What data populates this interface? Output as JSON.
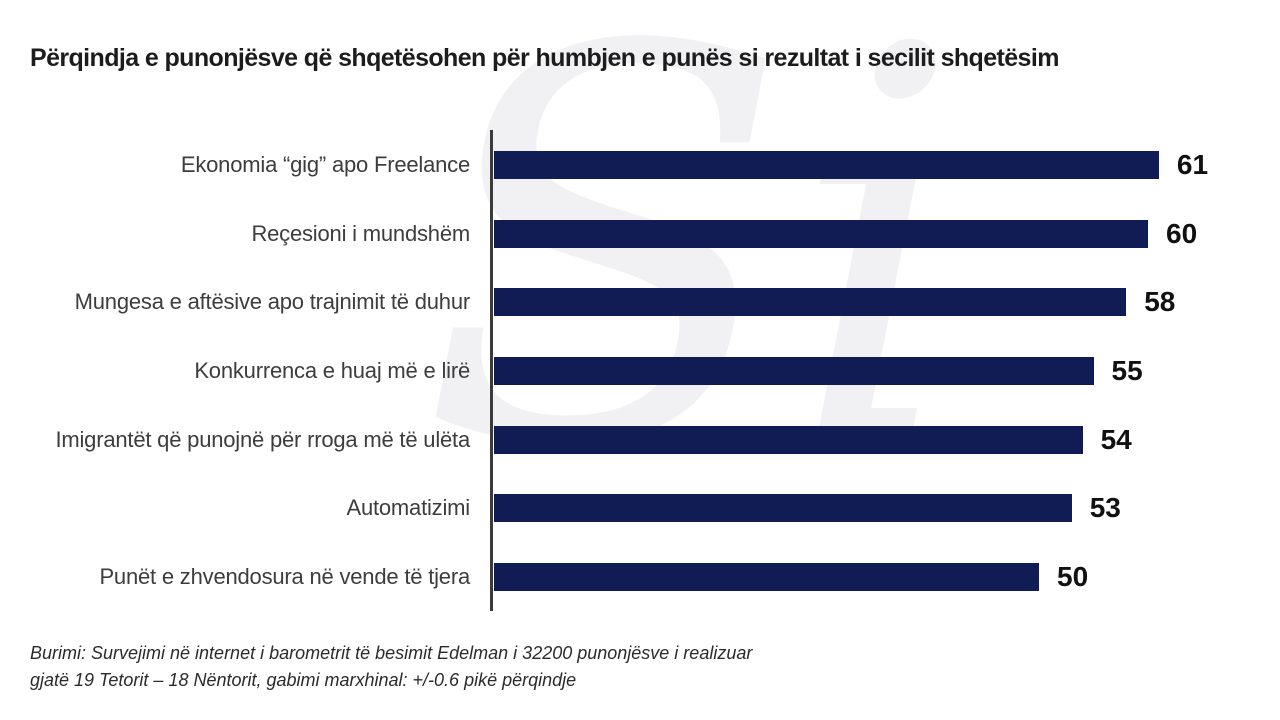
{
  "header": {
    "title": "Përqindja e punonjësve që shqetësohen për humbjen e punës si rezultat i secilit shqetësim"
  },
  "watermark": {
    "glyph": "Si",
    "color": "#f1f1f3"
  },
  "chart_data": {
    "type": "bar",
    "orientation": "horizontal",
    "title": "Përqindja e punonjësve që shqetësohen për humbjen e punës si rezultat i secilit shqetësim",
    "categories": [
      "Ekonomia “gig” apo Freelance",
      "Reçesioni i mundshëm",
      "Mungesa e aftësive apo trajnimit të duhur",
      "Konkurrenca e huaj më e lirë",
      "Imigrantët që punojnë për rroga më të ulëta",
      "Automatizimi",
      "Punët e zhvendosura në vende të tjera"
    ],
    "values": [
      61,
      60,
      58,
      55,
      54,
      53,
      50
    ],
    "value_labels_shown": true,
    "xlim": [
      0,
      65
    ],
    "grid": false,
    "legend": false,
    "bar_color": "#121c54",
    "axis_color": "#3b3b3b"
  },
  "footer": {
    "source_line1": "Burimi: Survejimi në internet i barometrit të besimit Edelman i 32200 punonjësve i realizuar",
    "source_line2": "gjatë 19 Tetorit – 18 Nëntorit, gabimi marxhinal: +/-0.6 pikë përqindje"
  }
}
